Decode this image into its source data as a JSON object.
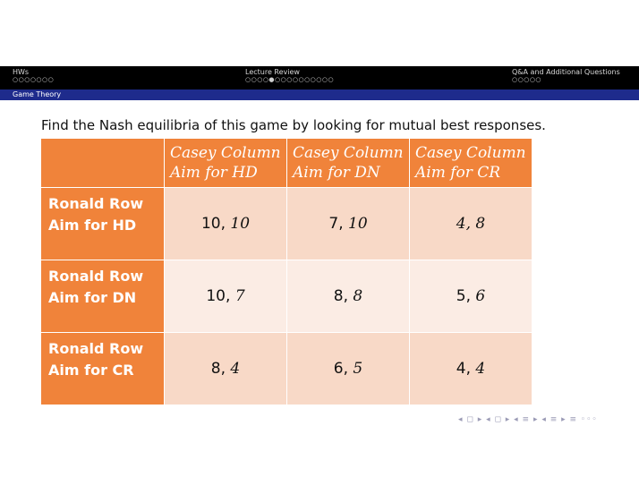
{
  "header": {
    "sections": [
      {
        "label": "HWs",
        "dots": "○○○○○○○"
      },
      {
        "label": "Lecture Review",
        "dots": "○○○○●○○○○○○○○○○"
      },
      {
        "label": "Q&A and Additional Questions",
        "dots": "○○○○○"
      }
    ],
    "subsection": "Game Theory"
  },
  "prompt": "Find the Nash equilibria of this game by looking for mutual best responses.",
  "table": {
    "columns": [
      {
        "line1": "Casey Column",
        "line2": "Aim for HD"
      },
      {
        "line1": "Casey Column",
        "line2": "Aim for DN"
      },
      {
        "line1": "Casey Column",
        "line2": "Aim for CR"
      }
    ],
    "rows": [
      {
        "line1": "Ronald Row",
        "line2": "Aim for HD",
        "cells": [
          {
            "a": "10",
            "b": "10"
          },
          {
            "a": "7",
            "b": "10"
          },
          {
            "a": "4",
            "b": "8"
          }
        ]
      },
      {
        "line1": "Ronald Row",
        "line2": "Aim for DN",
        "cells": [
          {
            "a": "10",
            "b": "7"
          },
          {
            "a": "8",
            "b": "8"
          },
          {
            "a": "5",
            "b": "6"
          }
        ]
      },
      {
        "line1": "Ronald Row",
        "line2": "Aim for CR",
        "cells": [
          {
            "a": "8",
            "b": "4"
          },
          {
            "a": "6",
            "b": "5"
          },
          {
            "a": "4",
            "b": "4"
          }
        ]
      }
    ]
  },
  "colors": {
    "orange": "#f0833a",
    "header_bg": "#000000",
    "subbar_bg": "#1e2b8c"
  },
  "nav": "◂ ◻ ▸ ◂ ◻ ▸ ◂ ≡ ▸ ◂ ≡ ▸ ≡ ◦◦◦"
}
